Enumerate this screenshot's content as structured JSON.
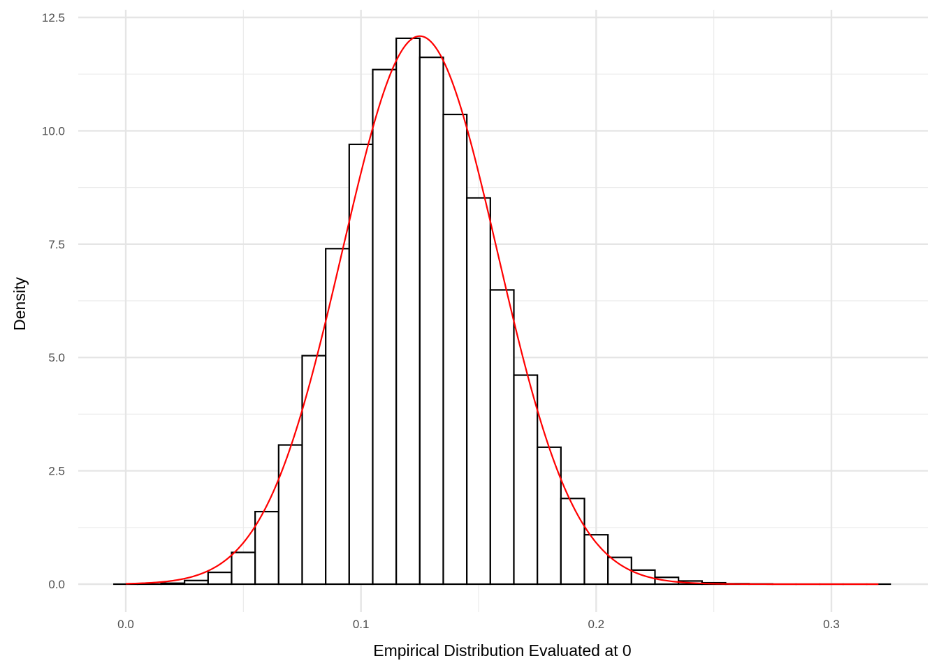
{
  "chart_data": {
    "type": "bar",
    "subtype": "histogram-with-density-curve",
    "title": "",
    "xlabel": "Empirical Distribution Evaluated at 0",
    "ylabel": "Density",
    "xlim": [
      -0.005,
      0.325
    ],
    "ylim": [
      0,
      12.5
    ],
    "x_ticks": [
      0.0,
      0.1,
      0.2,
      0.3
    ],
    "x_tick_labels": [
      "0.0",
      "0.1",
      "0.2",
      "0.3"
    ],
    "x_minor_ticks": [
      0.05,
      0.15,
      0.25
    ],
    "y_ticks": [
      0,
      2.5,
      5,
      7.5,
      10,
      12.5
    ],
    "y_tick_labels": [
      "0.0",
      "2.5",
      "5.0",
      "7.5",
      "10.0",
      "12.5"
    ],
    "y_minor_ticks": [
      1.25,
      3.75,
      6.25,
      8.75,
      11.25
    ],
    "grid": true,
    "bin_width": 0.01,
    "bins": [
      {
        "x0": -0.005,
        "x1": 0.005,
        "density": 0.0
      },
      {
        "x0": 0.005,
        "x1": 0.015,
        "density": 0.0
      },
      {
        "x0": 0.015,
        "x1": 0.025,
        "density": 0.02
      },
      {
        "x0": 0.025,
        "x1": 0.035,
        "density": 0.08
      },
      {
        "x0": 0.035,
        "x1": 0.045,
        "density": 0.26
      },
      {
        "x0": 0.045,
        "x1": 0.055,
        "density": 0.7
      },
      {
        "x0": 0.055,
        "x1": 0.065,
        "density": 1.6
      },
      {
        "x0": 0.065,
        "x1": 0.075,
        "density": 3.07
      },
      {
        "x0": 0.075,
        "x1": 0.085,
        "density": 5.04
      },
      {
        "x0": 0.085,
        "x1": 0.095,
        "density": 7.4
      },
      {
        "x0": 0.095,
        "x1": 0.105,
        "density": 9.7
      },
      {
        "x0": 0.105,
        "x1": 0.115,
        "density": 11.35
      },
      {
        "x0": 0.115,
        "x1": 0.125,
        "density": 12.04
      },
      {
        "x0": 0.125,
        "x1": 0.135,
        "density": 11.62
      },
      {
        "x0": 0.135,
        "x1": 0.145,
        "density": 10.36
      },
      {
        "x0": 0.145,
        "x1": 0.155,
        "density": 8.52
      },
      {
        "x0": 0.155,
        "x1": 0.165,
        "density": 6.49
      },
      {
        "x0": 0.165,
        "x1": 0.175,
        "density": 4.61
      },
      {
        "x0": 0.175,
        "x1": 0.185,
        "density": 3.02
      },
      {
        "x0": 0.185,
        "x1": 0.195,
        "density": 1.89
      },
      {
        "x0": 0.195,
        "x1": 0.205,
        "density": 1.09
      },
      {
        "x0": 0.205,
        "x1": 0.215,
        "density": 0.59
      },
      {
        "x0": 0.215,
        "x1": 0.225,
        "density": 0.31
      },
      {
        "x0": 0.225,
        "x1": 0.235,
        "density": 0.15
      },
      {
        "x0": 0.235,
        "x1": 0.245,
        "density": 0.07
      },
      {
        "x0": 0.245,
        "x1": 0.255,
        "density": 0.03
      },
      {
        "x0": 0.255,
        "x1": 0.265,
        "density": 0.01
      },
      {
        "x0": 0.265,
        "x1": 0.275,
        "density": 0.005
      },
      {
        "x0": 0.275,
        "x1": 0.285,
        "density": 0.0
      },
      {
        "x0": 0.285,
        "x1": 0.295,
        "density": 0.0
      },
      {
        "x0": 0.295,
        "x1": 0.305,
        "density": 0.0
      },
      {
        "x0": 0.305,
        "x1": 0.315,
        "density": 0.0
      },
      {
        "x0": 0.315,
        "x1": 0.325,
        "density": 0.0
      }
    ],
    "density_curve": {
      "distribution": "normal",
      "mean": 0.125,
      "sd": 0.033,
      "x_range": [
        0.0,
        0.32
      ],
      "color": "#ff0000"
    },
    "bar_fill": "#ffffff",
    "bar_outline": "#000000"
  }
}
